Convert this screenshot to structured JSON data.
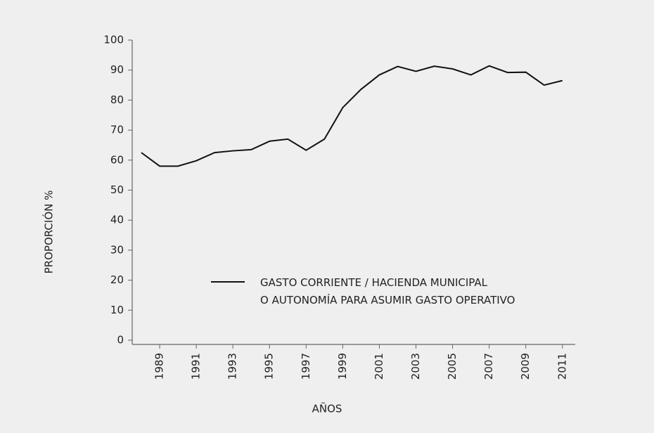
{
  "chart_data": {
    "type": "line",
    "y_label": "PROPORCIÓN %",
    "x_label": "AÑOS",
    "x": [
      1988,
      1989,
      1990,
      1991,
      1992,
      1993,
      1994,
      1995,
      1996,
      1997,
      1998,
      1999,
      2000,
      2001,
      2002,
      2003,
      2004,
      2005,
      2006,
      2007,
      2008,
      2009,
      2010,
      2011
    ],
    "series": [
      {
        "name": "GASTO CORRIENTE / HACIENDA MUNICIPAL\nO AUTONOMÍA PARA ASUMIR GASTO OPERATIVO",
        "color": "#111111",
        "values": [
          62.5,
          58,
          58,
          59.8,
          62.5,
          63.1,
          63.5,
          66.3,
          67,
          63.3,
          67,
          77.5,
          83.6,
          88.4,
          91.2,
          89.6,
          91.3,
          90.4,
          88.4,
          91.4,
          89.2,
          89.3,
          85,
          86.5
        ]
      }
    ],
    "xlim": [
      1987.5,
      2011.7
    ],
    "xticks": [
      1989,
      1991,
      1993,
      1995,
      1997,
      1999,
      2001,
      2003,
      2005,
      2007,
      2009,
      2011
    ],
    "ylim": [
      0,
      100
    ],
    "yticks": [
      0,
      10,
      20,
      30,
      40,
      50,
      60,
      70,
      80,
      90,
      100
    ],
    "legend": "center"
  }
}
